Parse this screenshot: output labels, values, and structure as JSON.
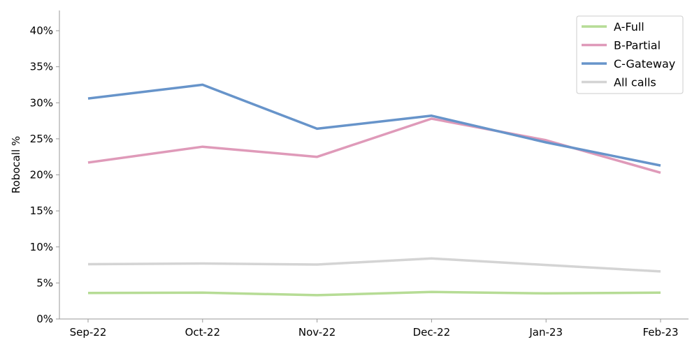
{
  "chart_data": {
    "type": "line",
    "title": "",
    "xlabel": "",
    "ylabel": "Robocall %",
    "categories": [
      "Sep-22",
      "Oct-22",
      "Nov-22",
      "Dec-22",
      "Jan-23",
      "Feb-23"
    ],
    "ylim": [
      0,
      40
    ],
    "yticks": [
      "0%",
      "5%",
      "10%",
      "15%",
      "20%",
      "25%",
      "30%",
      "35%",
      "40%"
    ],
    "grid": false,
    "legend_position": "top-right",
    "series": [
      {
        "name": "A-Full",
        "color": "#b6dc95",
        "values": [
          3.6,
          3.65,
          3.3,
          3.75,
          3.55,
          3.65
        ]
      },
      {
        "name": "B-Partial",
        "color": "#df9ab9",
        "values": [
          21.7,
          23.9,
          22.5,
          27.8,
          24.8,
          20.3
        ]
      },
      {
        "name": "C-Gateway",
        "color": "#6794ca",
        "values": [
          30.6,
          32.5,
          26.4,
          28.2,
          24.5,
          21.3
        ]
      },
      {
        "name": "All calls",
        "color": "#d4d4d4",
        "values": [
          7.6,
          7.7,
          7.55,
          8.4,
          7.5,
          6.6
        ]
      }
    ]
  }
}
